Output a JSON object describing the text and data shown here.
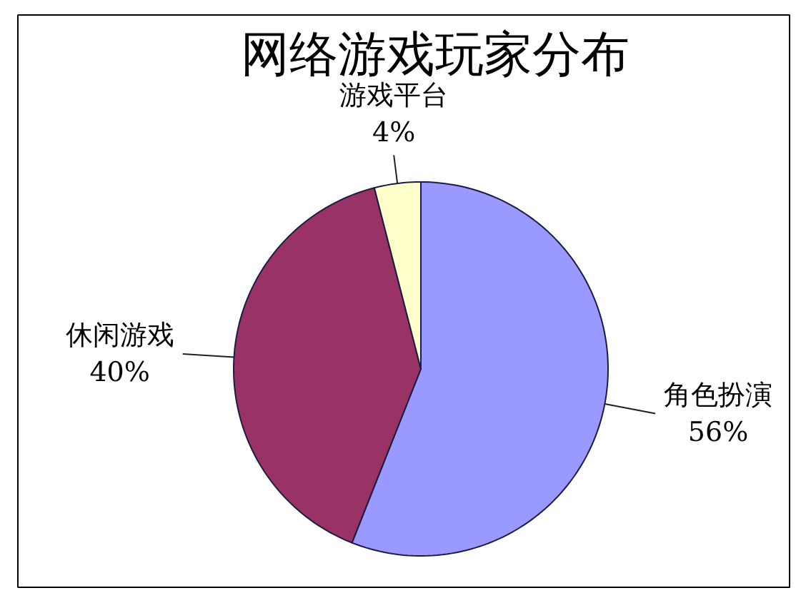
{
  "chart_data": {
    "type": "pie",
    "title": "网络游戏玩家分布",
    "categories": [
      "角色扮演",
      "休闲游戏",
      "游戏平台"
    ],
    "values": [
      56,
      40,
      4
    ],
    "colors": [
      "#9999ff",
      "#993366",
      "#ffffcc"
    ],
    "value_labels": [
      "56%",
      "40%",
      "4%"
    ]
  }
}
